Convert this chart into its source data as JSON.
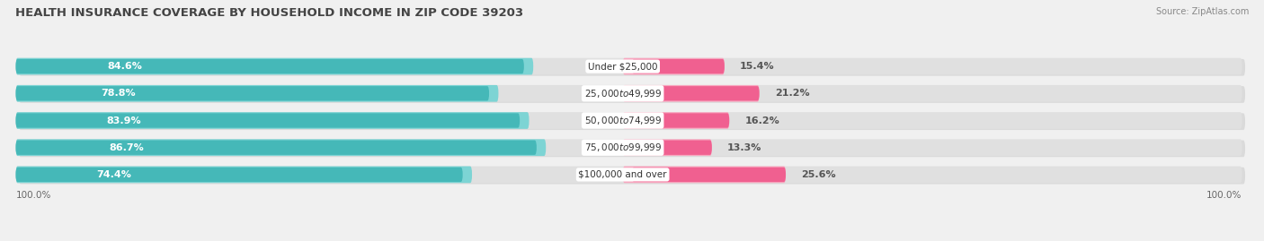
{
  "title": "HEALTH INSURANCE COVERAGE BY HOUSEHOLD INCOME IN ZIP CODE 39203",
  "source": "Source: ZipAtlas.com",
  "categories": [
    "Under $25,000",
    "$25,000 to $49,999",
    "$50,000 to $74,999",
    "$75,000 to $99,999",
    "$100,000 and over"
  ],
  "with_coverage": [
    84.6,
    78.8,
    83.9,
    86.7,
    74.4
  ],
  "without_coverage": [
    15.4,
    21.2,
    16.2,
    13.3,
    25.6
  ],
  "color_coverage": "#45b8b8",
  "color_coverage_light": "#7dd4d4",
  "color_no_coverage": "#f06090",
  "color_no_coverage_light": "#f8a8c0",
  "bar_height": 0.62,
  "background_color": "#f0f0f0",
  "bar_bg_color": "#e0e0e0",
  "title_fontsize": 9.5,
  "label_fontsize": 8.0,
  "tick_fontsize": 7.5,
  "source_fontsize": 7.0
}
